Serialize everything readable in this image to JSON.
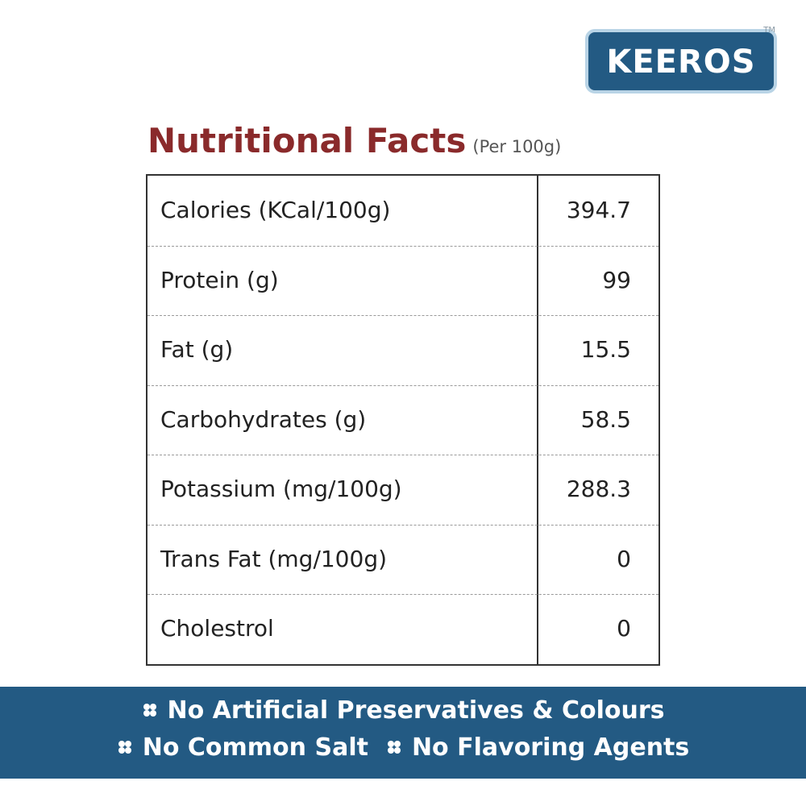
{
  "logo": {
    "brand": "KEEROS",
    "trademark": "TM"
  },
  "title": {
    "main": "Nutritional Facts",
    "note": "(Per 100g)"
  },
  "table": {
    "rows": [
      [
        "Calories (KCal/100g)",
        "394.7"
      ],
      [
        "Protein (g)",
        "99"
      ],
      [
        "Fat (g)",
        "15.5"
      ],
      [
        "Carbohydrates (g)",
        "58.5"
      ],
      [
        "Potassium (mg/100g)",
        "288.3"
      ],
      [
        "Trans Fat (mg/100g)",
        "0"
      ],
      [
        "Cholestrol",
        "0"
      ]
    ]
  },
  "banner": {
    "lines": [
      [
        "No Artificial Preservatives & Colours"
      ],
      [
        "No Common Salt",
        "No Flavoring Agents"
      ]
    ]
  }
}
